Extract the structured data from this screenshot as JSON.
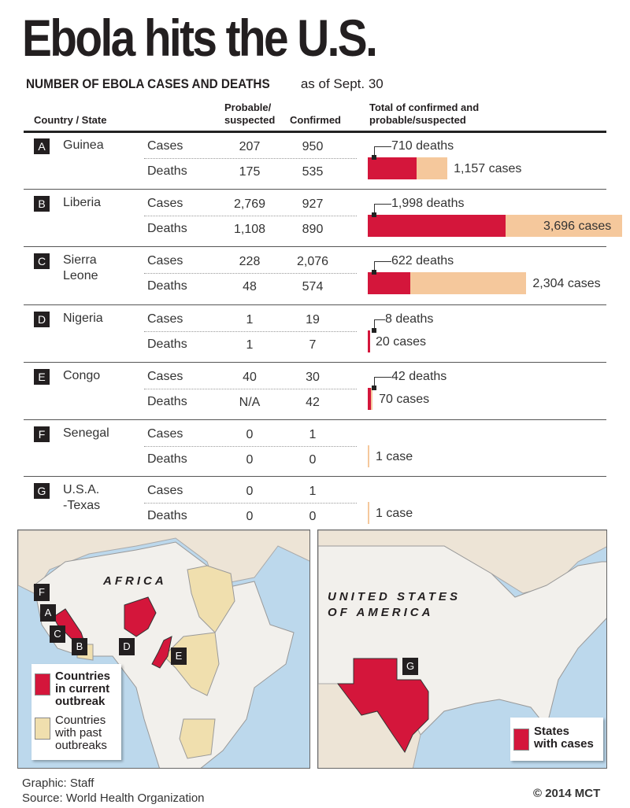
{
  "title": "Ebola hits the U.S.",
  "subtitle": {
    "main": "NUMBER OF EBOLA CASES AND DEATHS",
    "date": "as of Sept. 30"
  },
  "headers": {
    "country": "Country / State",
    "probable": [
      "Probable/",
      "suspected"
    ],
    "confirmed": "Confirmed",
    "total": [
      "Total of confirmed and",
      "probable/suspected"
    ]
  },
  "row_labels": {
    "cases": "Cases",
    "deaths": "Deaths"
  },
  "colors": {
    "deaths": "#d4163b",
    "cases": "#f5c89c"
  },
  "chart_data": {
    "type": "bar",
    "title": "Total of confirmed and probable/suspected",
    "series_names": [
      "deaths",
      "cases"
    ],
    "rows": [
      {
        "letter": "A",
        "name": [
          "Guinea"
        ],
        "cases_probable": "207",
        "cases_confirmed": "950",
        "deaths_probable": "175",
        "deaths_confirmed": "535",
        "total_deaths": 710,
        "total_cases": 1157,
        "deaths_label": "710 deaths",
        "cases_label": "1,157 cases"
      },
      {
        "letter": "B",
        "name": [
          "Liberia"
        ],
        "cases_probable": "2,769",
        "cases_confirmed": "927",
        "deaths_probable": "1,108",
        "deaths_confirmed": "890",
        "total_deaths": 1998,
        "total_cases": 3696,
        "deaths_label": "1,998 deaths",
        "cases_label": "3,696 cases"
      },
      {
        "letter": "C",
        "name": [
          "Sierra",
          "Leone"
        ],
        "cases_probable": "228",
        "cases_confirmed": "2,076",
        "deaths_probable": "48",
        "deaths_confirmed": "574",
        "total_deaths": 622,
        "total_cases": 2304,
        "deaths_label": "622 deaths",
        "cases_label": "2,304 cases"
      },
      {
        "letter": "D",
        "name": [
          "Nigeria"
        ],
        "cases_probable": "1",
        "cases_confirmed": "19",
        "deaths_probable": "1",
        "deaths_confirmed": "7",
        "total_deaths": 8,
        "total_cases": 20,
        "deaths_label": "8 deaths",
        "cases_label": "20 cases"
      },
      {
        "letter": "E",
        "name": [
          "Congo"
        ],
        "cases_probable": "40",
        "cases_confirmed": "30",
        "deaths_probable": "N/A",
        "deaths_confirmed": "42",
        "total_deaths": 42,
        "total_cases": 70,
        "deaths_label": "42 deaths",
        "cases_label": "70 cases"
      },
      {
        "letter": "F",
        "name": [
          "Senegal"
        ],
        "cases_probable": "0",
        "cases_confirmed": "1",
        "deaths_probable": "0",
        "deaths_confirmed": "0",
        "total_deaths": 0,
        "total_cases": 1,
        "deaths_label": "",
        "cases_label": "1 case"
      },
      {
        "letter": "G",
        "name": [
          "U.S.A.",
          "-Texas"
        ],
        "cases_probable": "0",
        "cases_confirmed": "1",
        "deaths_probable": "0",
        "deaths_confirmed": "0",
        "total_deaths": 0,
        "total_cases": 1,
        "deaths_label": "",
        "cases_label": "1 case"
      }
    ]
  },
  "maps": {
    "africa": {
      "label": "AFRICA",
      "legend_current": [
        "Countries",
        "in current",
        "outbreak"
      ],
      "legend_past": [
        "Countries",
        "with past",
        "outbreaks"
      ],
      "markers": [
        "F",
        "A",
        "C",
        "B",
        "D",
        "E"
      ]
    },
    "usa": {
      "label": [
        "UNITED STATES",
        "OF AMERICA"
      ],
      "legend": [
        "States",
        "with cases"
      ],
      "marker": "G"
    }
  },
  "footer": {
    "graphic": "Graphic: Staff",
    "source": "Source: World Health Organization",
    "copyright": "© 2014 MCT"
  }
}
